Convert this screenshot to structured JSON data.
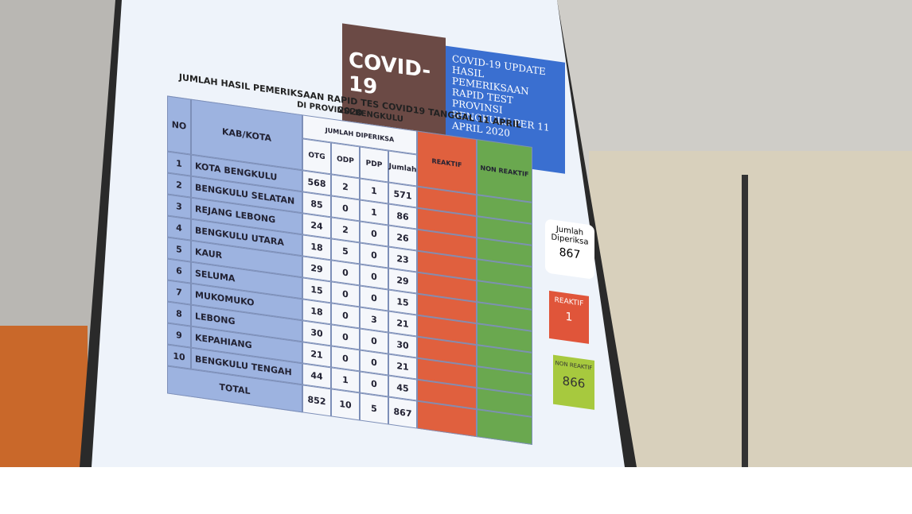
{
  "slide": {
    "logo_text": "COVID-19",
    "update_box": "COVID-19 UPDATE HASIL PEMERIKSAAN RAPID TEST PROVINSI BENGKULU PER 11 APRIL 2020",
    "title": "JUMLAH HASIL PEMERIKSAAN RAPID TES COVID19 TANGGAL 11 APRIL 2020",
    "subtitle": "DI PROVINSI BENGKULU"
  },
  "table": {
    "headers": {
      "no": "NO",
      "region": "KAB/KOTA",
      "group": "JUMLAH DIPERIKSA",
      "cols": [
        "OTG",
        "ODP",
        "PDP",
        "Jumlah"
      ],
      "reactive": "REAKTIF",
      "non_reactive": "NON REAKTIF"
    },
    "rows": [
      [
        1,
        "KOTA BENGKULU",
        568,
        2,
        1,
        571
      ],
      [
        2,
        "BENGKULU SELATAN",
        85,
        0,
        1,
        86
      ],
      [
        3,
        "REJANG LEBONG",
        24,
        2,
        0,
        26
      ],
      [
        4,
        "BENGKULU UTARA",
        18,
        5,
        0,
        23
      ],
      [
        5,
        "KAUR",
        29,
        0,
        0,
        29
      ],
      [
        6,
        "SELUMA",
        15,
        0,
        0,
        15
      ],
      [
        7,
        "MUKOMUKO",
        18,
        0,
        3,
        21
      ],
      [
        8,
        "LEBONG",
        30,
        0,
        0,
        30
      ],
      [
        9,
        "KEPAHIANG",
        21,
        0,
        0,
        21
      ],
      [
        10,
        "BENGKULU TENGAH",
        44,
        1,
        0,
        45
      ]
    ],
    "total": {
      "label": "TOTAL",
      "values": [
        852,
        10,
        5,
        867
      ]
    }
  },
  "summary": {
    "examined_label": "Jumlah Diperiksa",
    "examined": 867,
    "reactive_label": "REAKTIF",
    "reactive": 1,
    "non_reactive_label": "NON REAKTIF",
    "non_reactive": 866
  }
}
